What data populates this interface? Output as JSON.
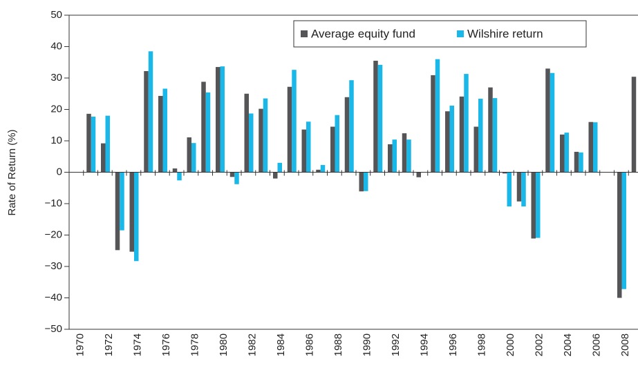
{
  "chart_data": {
    "type": "bar",
    "y_label": "Rate of Return (%)",
    "categories": [
      "1970",
      null,
      "1972",
      null,
      "1974",
      null,
      "1976",
      null,
      "1978",
      null,
      "1980",
      null,
      "1982",
      null,
      "1984",
      null,
      "1986",
      null,
      "1988",
      null,
      "1990",
      null,
      "1992",
      null,
      "1994",
      null,
      "1996",
      null,
      "1998",
      null,
      "2000",
      null,
      "2002",
      null,
      "2004",
      null,
      "2006",
      null,
      "2008",
      null
    ],
    "series": [
      {
        "name": "Average equity fund",
        "color": "#555557",
        "values": [
          null,
          18.6,
          9.2,
          -24.8,
          -25.3,
          32.2,
          24.3,
          1.2,
          11.1,
          28.8,
          33.5,
          -1.5,
          25,
          20.2,
          -2,
          27.2,
          13.6,
          0.8,
          14.5,
          23.9,
          -6.1,
          35.5,
          8.9,
          12.4,
          -1.6,
          30.9,
          19.4,
          24.1,
          14.5,
          27,
          -0.4,
          -9.3,
          -21.1,
          33,
          12,
          6.5,
          16,
          null,
          -40,
          30.4
        ]
      },
      {
        "name": "Wilshire return",
        "color": "#1ab8e8",
        "values": [
          null,
          17.7,
          18,
          -18.5,
          -28.3,
          38.5,
          26.6,
          -2.6,
          9.3,
          25.4,
          33.7,
          -3.8,
          18.7,
          23.5,
          3,
          32.6,
          16.1,
          2.3,
          18.2,
          29.3,
          -6,
          34.2,
          10.4,
          10.4,
          -0.1,
          36,
          21.2,
          31.3,
          23.4,
          23.6,
          -10.9,
          -10.9,
          -20.9,
          31.6,
          12.6,
          6.3,
          15.9,
          null,
          -37.2,
          null
        ]
      }
    ],
    "ylim": [
      -50,
      50
    ],
    "yticks": [
      50,
      40,
      30,
      20,
      10,
      0,
      {
        "value": -10,
        "label": "−10"
      },
      {
        "value": -20,
        "label": "−20"
      },
      {
        "value": -30,
        "label": "−30"
      },
      {
        "value": -40,
        "label": "−40"
      },
      {
        "value": -50,
        "label": "−50"
      }
    ],
    "legend": "upper right"
  }
}
